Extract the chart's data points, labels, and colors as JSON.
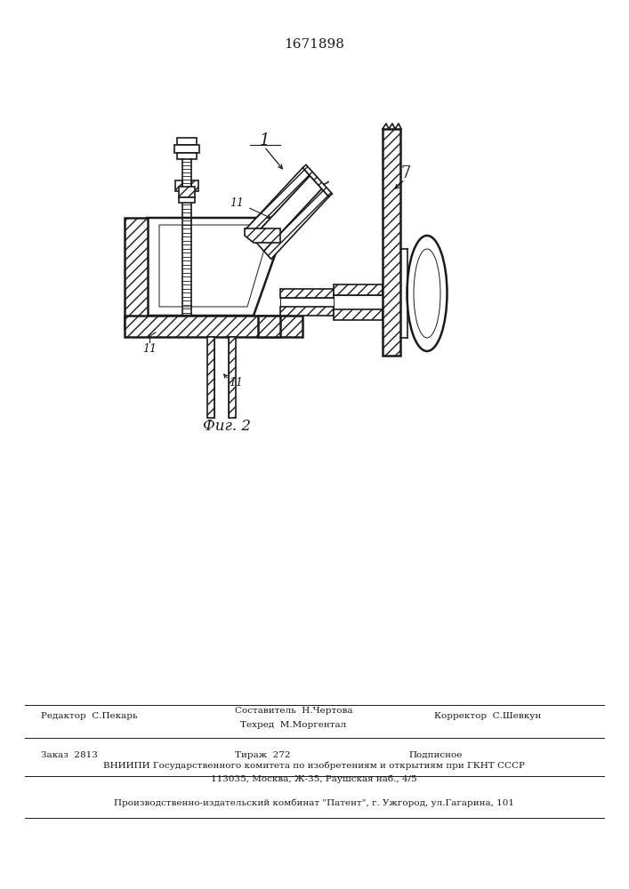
{
  "patent_number": "1671898",
  "fig_label": "Фиг. 2",
  "label_1": "1",
  "label_7": "7",
  "footer_line1_col1": "Редактор  С.Пекарь",
  "footer_line1_col2a": "Составитель  Н.Чертова",
  "footer_line1_col2b": "Техред  М.Моргентал",
  "footer_line1_col3": "Корректор  С.Шевкун",
  "footer_line2_col1": "Заказ  2813",
  "footer_line2_col2": "Тираж  272",
  "footer_line2_col3": "Подписное",
  "footer_line3": "ВНИИПИ Государственного комитета по изобретениям и открытиям при ГКНТ СССР",
  "footer_line4": "113035, Москва, Ж-35, Раушская наб., 4/5",
  "footer_line5": "Производственно-издательский комбинат \"Патент\", г. Ужгород, ул.Гагарина, 101",
  "bg_color": "#ffffff",
  "line_color": "#1a1a1a"
}
